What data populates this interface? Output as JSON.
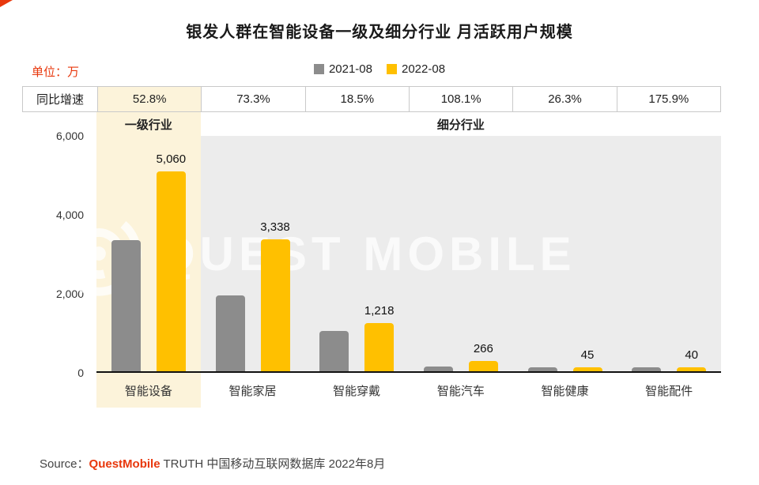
{
  "page": {
    "title": "银发人群在智能设备一级及细分行业 月活跃用户规模",
    "unit_label": "单位：万",
    "watermark": "QUEST MOBILE",
    "source": {
      "prefix": "Source：",
      "brand": "QuestMobile",
      "suffix": " TRUTH 中国移动互联网数据库 2022年8月"
    }
  },
  "chart_data": {
    "type": "bar",
    "title": "银发人群在智能设备一级及细分行业 月活跃用户规模",
    "unit": "万",
    "categories": [
      "智能设备",
      "智能家居",
      "智能穿戴",
      "智能汽车",
      "智能健康",
      "智能配件"
    ],
    "series": [
      {
        "name": "2021-08",
        "color": "#8c8c8c",
        "values": [
          3312,
          1926,
          1028,
          128,
          36,
          15
        ]
      },
      {
        "name": "2022-08",
        "color": "#ffc000",
        "values": [
          5060,
          3338,
          1218,
          266,
          45,
          40
        ],
        "value_labels": [
          "5,060",
          "3,338",
          "1,218",
          "266",
          "45",
          "40"
        ]
      }
    ],
    "growth_row": {
      "label": "同比增速",
      "values": [
        "52.8%",
        "73.3%",
        "18.5%",
        "108.1%",
        "26.3%",
        "175.9%"
      ]
    },
    "sections": {
      "primary": "一级行业",
      "sub": "细分行业"
    },
    "y_ticks": [
      "6,000",
      "4,000",
      "2,000",
      "0"
    ],
    "ylim": [
      0,
      6000
    ],
    "grid": false,
    "legend_position": "top-center",
    "highlight_color": "#fcf3da",
    "accent_color": "#e8380d"
  }
}
